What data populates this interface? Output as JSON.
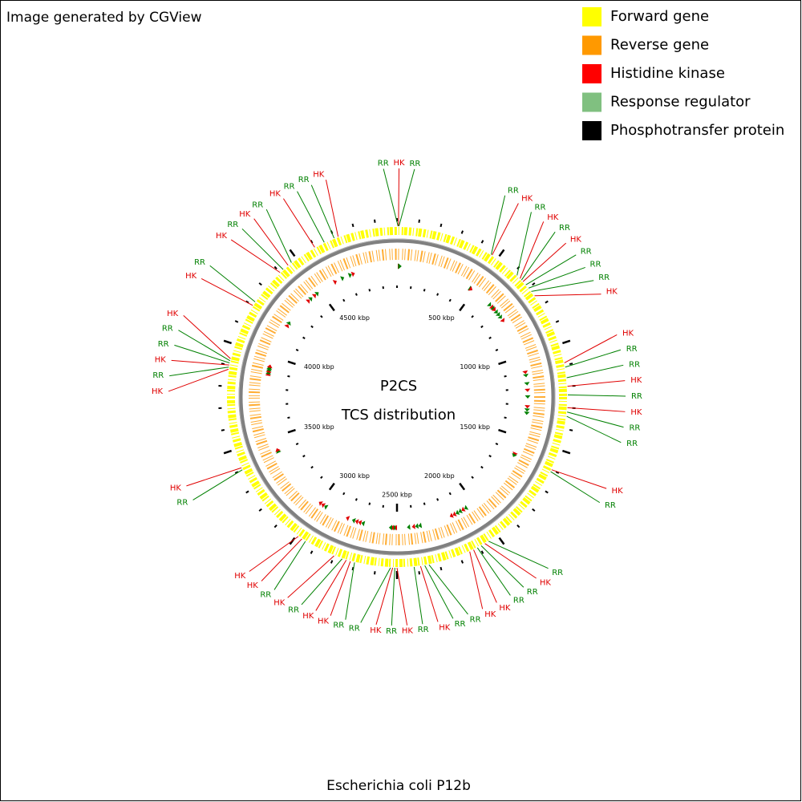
{
  "header": {
    "credit": "Image generated by CGView"
  },
  "legend": [
    {
      "label": "Forward gene",
      "color": "#ffff00"
    },
    {
      "label": "Reverse gene",
      "color": "#ff9900"
    },
    {
      "label": "Histidine kinase",
      "color": "#ff0000"
    },
    {
      "label": "Response regulator",
      "color": "#80c080"
    },
    {
      "label": "Phosphotransfer protein",
      "color": "#000000"
    }
  ],
  "map": {
    "title": "P2CS",
    "subtitle": "TCS distribution",
    "organism": "Escherichia coli P12b",
    "range_kbp": [
      0,
      5000
    ],
    "ticks": [
      {
        "value": 500,
        "label": "500 kbp"
      },
      {
        "value": 1000,
        "label": "1000 kbp"
      },
      {
        "value": 1500,
        "label": "1500 kbp"
      },
      {
        "value": 2000,
        "label": "2000 kbp"
      },
      {
        "value": 2500,
        "label": "2500 kbp"
      },
      {
        "value": 3000,
        "label": "3000 kbp"
      },
      {
        "value": 3500,
        "label": "3500 kbp"
      },
      {
        "value": 4000,
        "label": "4000 kbp"
      },
      {
        "value": 4500,
        "label": "4500 kbp"
      }
    ],
    "features": [
      {
        "label": "RR",
        "kbp": 5,
        "color": "#008000"
      },
      {
        "label": "HK",
        "kbp": 7,
        "color": "#e00000"
      },
      {
        "label": "RR",
        "kbp": 9,
        "color": "#008000"
      },
      {
        "label": "RR",
        "kbp": 465,
        "color": "#008000"
      },
      {
        "label": "HK",
        "kbp": 470,
        "color": "#e00000"
      },
      {
        "label": "RR",
        "kbp": 620,
        "color": "#008000"
      },
      {
        "label": "HK",
        "kbp": 640,
        "color": "#e00000"
      },
      {
        "label": "RR",
        "kbp": 650,
        "color": "#008000"
      },
      {
        "label": "HK",
        "kbp": 660,
        "color": "#e00000"
      },
      {
        "label": "RR",
        "kbp": 680,
        "color": "#008000"
      },
      {
        "label": "RR",
        "kbp": 700,
        "color": "#008000"
      },
      {
        "label": "RR",
        "kbp": 720,
        "color": "#008000"
      },
      {
        "label": "HK",
        "kbp": 745,
        "color": "#e00000"
      },
      {
        "label": "HK",
        "kbp": 1090,
        "color": "#e00000"
      },
      {
        "label": "RR",
        "kbp": 1110,
        "color": "#008000"
      },
      {
        "label": "RR",
        "kbp": 1160,
        "color": "#008000"
      },
      {
        "label": "HK",
        "kbp": 1200,
        "color": "#e00000"
      },
      {
        "label": "RR",
        "kbp": 1240,
        "color": "#008000"
      },
      {
        "label": "HK",
        "kbp": 1300,
        "color": "#e00000"
      },
      {
        "label": "RR",
        "kbp": 1320,
        "color": "#008000"
      },
      {
        "label": "RR",
        "kbp": 1340,
        "color": "#008000"
      },
      {
        "label": "HK",
        "kbp": 1600,
        "color": "#e00000"
      },
      {
        "label": "RR",
        "kbp": 1610,
        "color": "#008000"
      },
      {
        "label": "RR",
        "kbp": 2050,
        "color": "#008000"
      },
      {
        "label": "HK",
        "kbp": 2070,
        "color": "#e00000"
      },
      {
        "label": "RR",
        "kbp": 2090,
        "color": "#008000"
      },
      {
        "label": "RR",
        "kbp": 2110,
        "color": "#008000"
      },
      {
        "label": "HK",
        "kbp": 2130,
        "color": "#e00000"
      },
      {
        "label": "HK",
        "kbp": 2150,
        "color": "#e00000"
      },
      {
        "label": "RR",
        "kbp": 2350,
        "color": "#008000"
      },
      {
        "label": "RR",
        "kbp": 2370,
        "color": "#008000"
      },
      {
        "label": "HK",
        "kbp": 2390,
        "color": "#e00000"
      },
      {
        "label": "RR",
        "kbp": 2420,
        "color": "#008000"
      },
      {
        "label": "HK",
        "kbp": 2500,
        "color": "#e00000"
      },
      {
        "label": "RR",
        "kbp": 2510,
        "color": "#008000"
      },
      {
        "label": "HK",
        "kbp": 2520,
        "color": "#e00000"
      },
      {
        "label": "RR",
        "kbp": 2530,
        "color": "#008000"
      },
      {
        "label": "RR",
        "kbp": 2700,
        "color": "#008000"
      },
      {
        "label": "HK",
        "kbp": 2720,
        "color": "#e00000"
      },
      {
        "label": "HK",
        "kbp": 2740,
        "color": "#e00000"
      },
      {
        "label": "RR",
        "kbp": 2760,
        "color": "#008000"
      },
      {
        "label": "HK",
        "kbp": 2800,
        "color": "#e00000"
      },
      {
        "label": "RR",
        "kbp": 2950,
        "color": "#008000"
      },
      {
        "label": "HK",
        "kbp": 2970,
        "color": "#e00000"
      },
      {
        "label": "HK",
        "kbp": 2990,
        "color": "#e00000"
      },
      {
        "label": "RR",
        "kbp": 3400,
        "color": "#008000"
      },
      {
        "label": "HK",
        "kbp": 3410,
        "color": "#e00000"
      },
      {
        "label": "HK",
        "kbp": 3880,
        "color": "#e00000"
      },
      {
        "label": "RR",
        "kbp": 3890,
        "color": "#008000"
      },
      {
        "label": "HK",
        "kbp": 3900,
        "color": "#e00000"
      },
      {
        "label": "RR",
        "kbp": 3910,
        "color": "#008000"
      },
      {
        "label": "RR",
        "kbp": 3920,
        "color": "#008000"
      },
      {
        "label": "HK",
        "kbp": 3930,
        "color": "#e00000"
      },
      {
        "label": "HK",
        "kbp": 4200,
        "color": "#e00000"
      },
      {
        "label": "RR",
        "kbp": 4220,
        "color": "#008000"
      },
      {
        "label": "HK",
        "kbp": 4400,
        "color": "#e00000"
      },
      {
        "label": "RR",
        "kbp": 4420,
        "color": "#008000"
      },
      {
        "label": "HK",
        "kbp": 4450,
        "color": "#e00000"
      },
      {
        "label": "RR",
        "kbp": 4470,
        "color": "#008000"
      },
      {
        "label": "HK",
        "kbp": 4600,
        "color": "#e00000"
      },
      {
        "label": "RR",
        "kbp": 4650,
        "color": "#008000"
      },
      {
        "label": "RR",
        "kbp": 4700,
        "color": "#008000"
      },
      {
        "label": "HK",
        "kbp": 4720,
        "color": "#e00000"
      }
    ]
  }
}
